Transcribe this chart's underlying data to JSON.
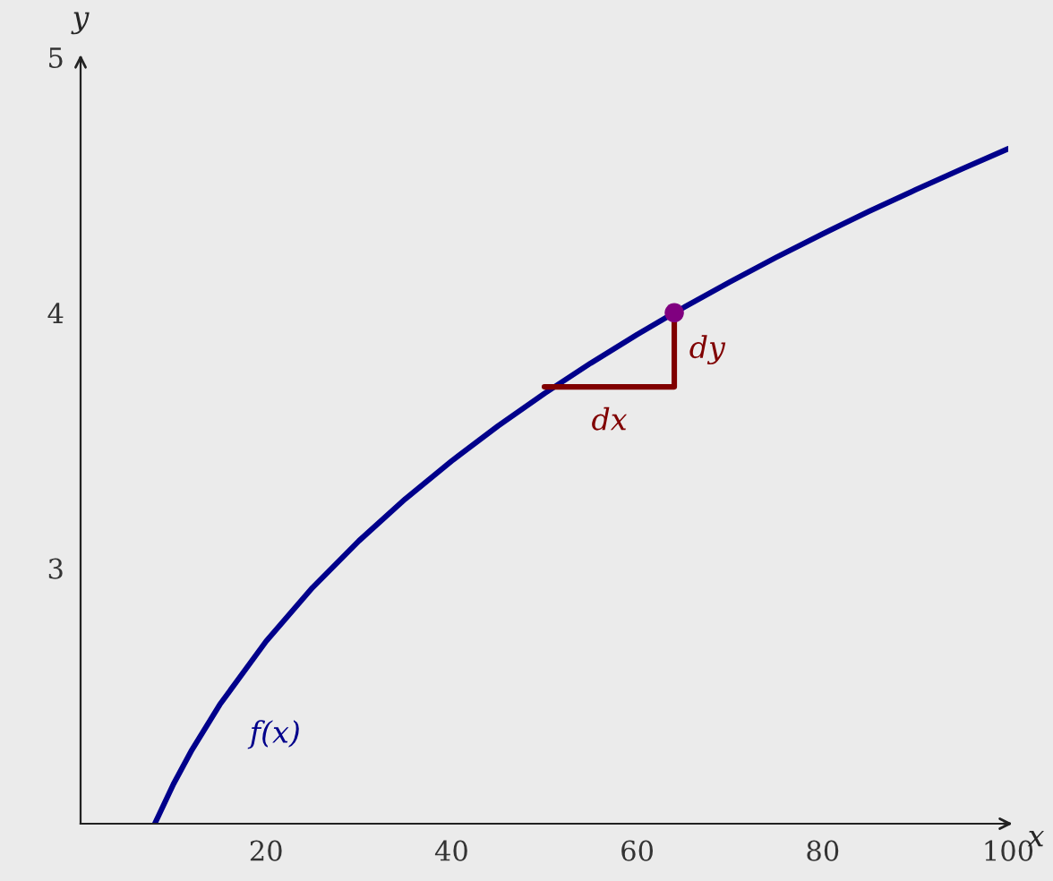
{
  "chart_data": {
    "type": "line",
    "xlabel": "x",
    "ylabel": "y",
    "xlim": [
      0,
      100
    ],
    "ylim": [
      2,
      5
    ],
    "xticks": [
      20,
      40,
      60,
      80,
      100
    ],
    "yticks": [
      3,
      4,
      5
    ],
    "grid": false,
    "legend": false,
    "series": [
      {
        "color": "#00008b",
        "x": [
          8,
          10,
          12,
          15,
          20,
          25,
          30,
          35,
          40,
          45,
          50,
          55,
          60,
          64,
          70,
          75,
          80,
          85,
          90,
          95,
          100
        ],
        "values": [
          2,
          2.154,
          2.289,
          2.466,
          2.714,
          2.924,
          3.107,
          3.271,
          3.42,
          3.557,
          3.684,
          3.803,
          3.915,
          4,
          4.121,
          4.217,
          4.309,
          4.397,
          4.481,
          4.563,
          4.642
        ]
      },
      {
        "type": "line",
        "color": "#800000",
        "x": [
          50,
          64,
          64
        ],
        "values": [
          3.71,
          3.71,
          4
        ]
      },
      {
        "type": "scatter",
        "color": "#800080",
        "marker": "circle",
        "x": [
          64
        ],
        "values": [
          4
        ]
      }
    ],
    "annotations": [
      "dx",
      "dy",
      "f(x)"
    ]
  }
}
